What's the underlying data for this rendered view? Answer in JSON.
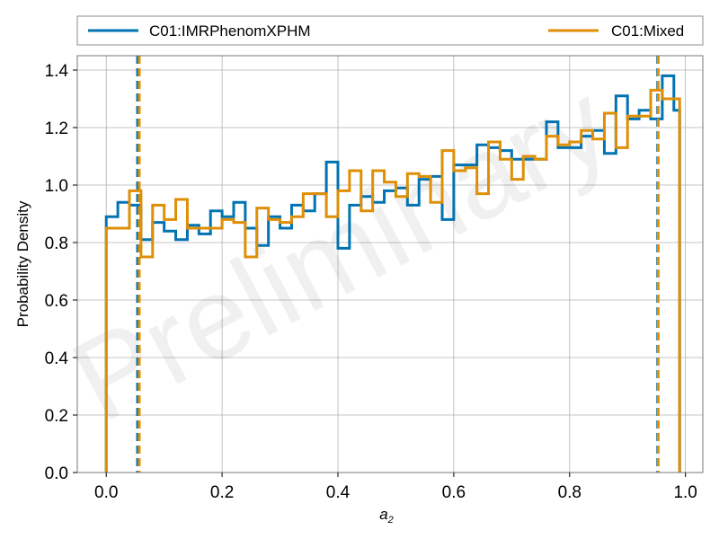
{
  "chart_data": {
    "type": "step",
    "watermark": "Preliminary",
    "xlabel": "a",
    "xlabel_sub": "2",
    "ylabel": "Probability Density",
    "xlim": [
      -0.05,
      1.03
    ],
    "ylim": [
      0,
      1.45
    ],
    "xticks": [
      0.0,
      0.2,
      0.4,
      0.6,
      0.8,
      1.0
    ],
    "xtick_labels": [
      "0.0",
      "0.2",
      "0.4",
      "0.6",
      "0.8",
      "1.0"
    ],
    "yticks": [
      0.0,
      0.2,
      0.4,
      0.6,
      0.8,
      1.0,
      1.2,
      1.4
    ],
    "ytick_labels": [
      "0.0",
      "0.2",
      "0.4",
      "0.6",
      "0.8",
      "1.0",
      "1.2",
      "1.4"
    ],
    "grid": true,
    "legend_position": "top, above plot",
    "bin_edges": [
      0.0,
      0.02,
      0.04,
      0.06,
      0.08,
      0.1,
      0.12,
      0.14,
      0.16,
      0.18,
      0.2,
      0.22,
      0.24,
      0.26,
      0.28,
      0.3,
      0.32,
      0.34,
      0.36,
      0.38,
      0.4,
      0.42,
      0.44,
      0.46,
      0.48,
      0.5,
      0.52,
      0.54,
      0.56,
      0.58,
      0.6,
      0.62,
      0.64,
      0.66,
      0.68,
      0.7,
      0.72,
      0.74,
      0.76,
      0.78,
      0.8,
      0.82,
      0.84,
      0.86,
      0.88,
      0.9,
      0.92,
      0.94,
      0.96,
      0.98,
      0.99
    ],
    "series": [
      {
        "name": "C01:IMRPhenomXPHM",
        "color": "#0173b2",
        "values": [
          0.89,
          0.94,
          0.93,
          0.81,
          0.87,
          0.84,
          0.81,
          0.86,
          0.83,
          0.91,
          0.89,
          0.94,
          0.85,
          0.79,
          0.89,
          0.85,
          0.93,
          0.91,
          0.97,
          1.08,
          0.78,
          0.93,
          0.96,
          0.94,
          0.98,
          0.99,
          0.93,
          1.02,
          1.03,
          0.88,
          1.07,
          1.07,
          1.14,
          1.13,
          1.12,
          1.09,
          1.09,
          1.09,
          1.22,
          1.13,
          1.13,
          1.17,
          1.19,
          1.11,
          1.31,
          1.23,
          1.26,
          1.23,
          1.38,
          1.26
        ],
        "interval_lines": [
          0.054,
          0.952
        ]
      },
      {
        "name": "C01:Mixed",
        "color": "#de8f05",
        "values": [
          0.85,
          0.85,
          0.98,
          0.75,
          0.93,
          0.88,
          0.95,
          0.85,
          0.85,
          0.85,
          0.88,
          0.87,
          0.75,
          0.92,
          0.88,
          0.87,
          0.89,
          0.97,
          0.97,
          0.89,
          0.98,
          1.05,
          0.91,
          1.05,
          1.01,
          0.96,
          1.04,
          1.03,
          0.94,
          1.12,
          1.05,
          1.06,
          0.97,
          1.15,
          1.09,
          1.02,
          1.1,
          1.09,
          1.17,
          1.14,
          1.15,
          1.19,
          1.16,
          1.25,
          1.13,
          1.24,
          1.24,
          1.33,
          1.3,
          1.3
        ],
        "interval_lines": [
          0.057,
          0.953
        ]
      }
    ]
  }
}
